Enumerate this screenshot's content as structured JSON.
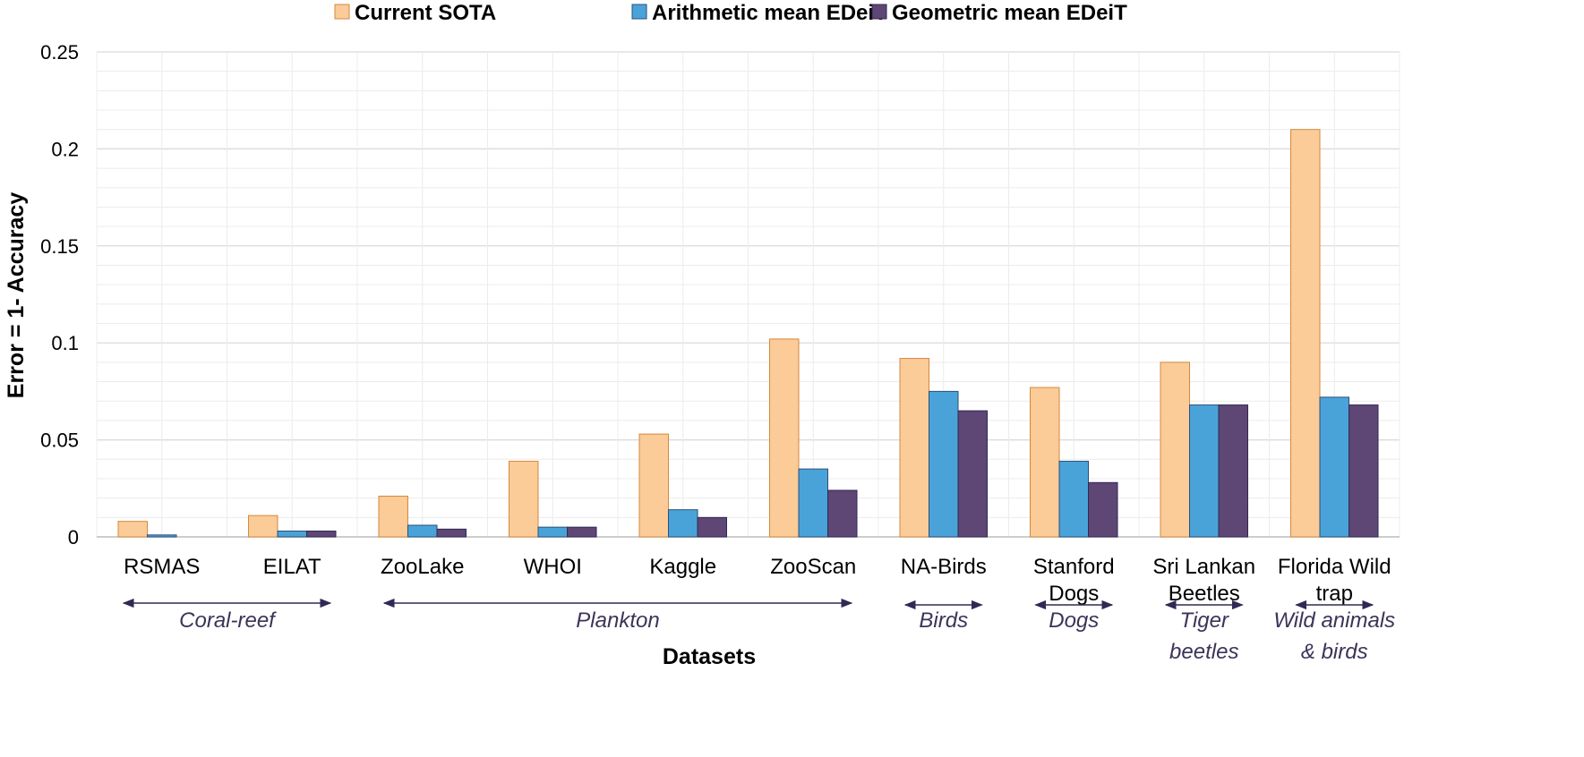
{
  "chart_data": {
    "type": "bar",
    "title": "",
    "xlabel": "Datasets",
    "ylabel": "Error = 1- Accuracy",
    "ylim": [
      0,
      0.25
    ],
    "yticks": [
      0,
      0.05,
      0.1,
      0.15,
      0.2,
      0.25
    ],
    "ytick_labels": [
      "0",
      "0.05",
      "0.1",
      "0.15",
      "0.2",
      "0.25"
    ],
    "grid": true,
    "legend_position": "top-center",
    "categories": [
      [
        "RSMAS"
      ],
      [
        "EILAT"
      ],
      [
        "ZooLake"
      ],
      [
        "WHOI"
      ],
      [
        "Kaggle"
      ],
      [
        "ZooScan"
      ],
      [
        "NA-Birds"
      ],
      [
        "Stanford",
        "Dogs"
      ],
      [
        "Sri Lankan",
        "Beetles"
      ],
      [
        "Florida Wild",
        "trap"
      ]
    ],
    "series": [
      {
        "name": "Current SOTA",
        "color": "#fbcb98",
        "stroke": "#d48a3c",
        "values": [
          0.008,
          0.011,
          0.021,
          0.039,
          0.053,
          0.102,
          0.092,
          0.077,
          0.09,
          0.21
        ]
      },
      {
        "name": "Arithmetic mean EDeiT",
        "color": "#4aa3d8",
        "stroke": "#2b4f7a",
        "values": [
          0.001,
          0.003,
          0.006,
          0.005,
          0.014,
          0.035,
          0.075,
          0.039,
          0.068,
          0.072
        ]
      },
      {
        "name": "Geometric mean EDeiT",
        "color": "#5e4675",
        "stroke": "#2f2a55",
        "values": [
          0.0,
          0.003,
          0.004,
          0.005,
          0.01,
          0.024,
          0.065,
          0.028,
          0.068,
          0.068
        ]
      }
    ],
    "groups": [
      {
        "label": [
          "Coral-reef"
        ],
        "from": 0,
        "to": 1
      },
      {
        "label": [
          "Plankton"
        ],
        "from": 2,
        "to": 5
      },
      {
        "label": [
          "Birds"
        ],
        "from": 6,
        "to": 6
      },
      {
        "label": [
          "Dogs"
        ],
        "from": 7,
        "to": 7
      },
      {
        "label": [
          "Tiger",
          "beetles"
        ],
        "from": 8,
        "to": 8
      },
      {
        "label": [
          "Wild animals",
          "& birds"
        ],
        "from": 9,
        "to": 9
      }
    ]
  }
}
